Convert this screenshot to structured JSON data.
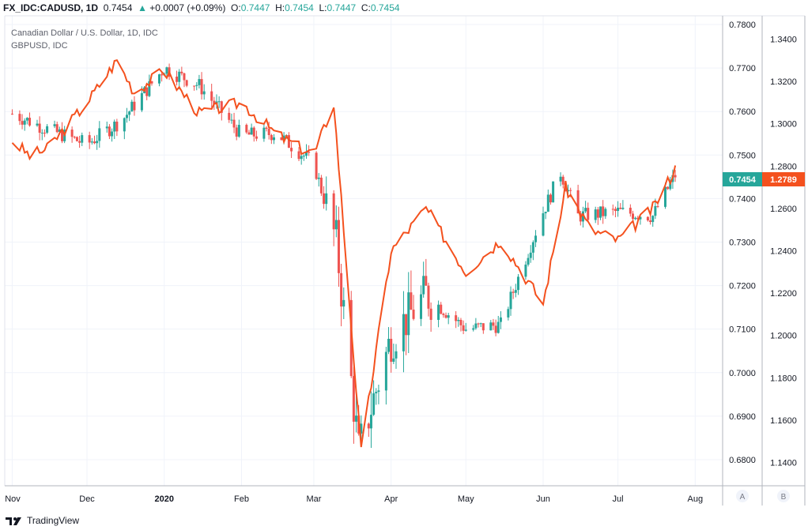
{
  "header": {
    "symbol": "FX_IDC:CADUSD, 1D",
    "last": "0.7454",
    "change": "+0.0007 (+0.09%)",
    "o_label": "O:",
    "o": "0.7447",
    "h_label": "H:",
    "h": "0.7454",
    "l_label": "L:",
    "l": "0.7447",
    "c_label": "C:",
    "c": "0.7454"
  },
  "legend": {
    "main": "Canadian Dollar / U.S. Dollar, 1D, IDC",
    "compare": "GBPUSD, IDC"
  },
  "axis_buttons": {
    "a": "A",
    "b": "B"
  },
  "footer": {
    "brand": "TradingView"
  },
  "colors": {
    "up": "#26a69a",
    "down": "#ef5350",
    "compare": "#f4511e",
    "grid": "#f0f3fa"
  },
  "chart_data": {
    "type": "line",
    "title": "Canadian Dollar / U.S. Dollar, 1D, IDC",
    "x_ticks": [
      "Nov",
      "Dec",
      "2020",
      "Feb",
      "Mar",
      "Apr",
      "May",
      "Jun",
      "Jul",
      "Aug"
    ],
    "y_left": {
      "ticks": [
        "0.7800",
        "0.7700",
        "0.7600",
        "0.7500",
        "0.7400",
        "0.7300",
        "0.7200",
        "0.7100",
        "0.7000",
        "0.6900",
        "0.6800"
      ],
      "range": [
        0.674,
        0.782
      ]
    },
    "y_right": {
      "ticks": [
        "1.3400",
        "1.3200",
        "1.3000",
        "1.2800",
        "1.2600",
        "1.2400",
        "1.2200",
        "1.2000",
        "1.1800",
        "1.1600",
        "1.1400"
      ],
      "range": [
        1.129,
        1.351
      ]
    },
    "last_left": "0.7454",
    "last_right": "1.2789",
    "series": [
      {
        "name": "CADUSD",
        "x": [
          "2019-11-01",
          "2019-11-15",
          "2019-12-01",
          "2019-12-15",
          "2020-01-01",
          "2020-01-15",
          "2020-02-01",
          "2020-02-15",
          "2020-03-01",
          "2020-03-10",
          "2020-03-19",
          "2020-04-01",
          "2020-04-15",
          "2020-05-01",
          "2020-05-15",
          "2020-06-01",
          "2020-06-08",
          "2020-06-15",
          "2020-07-01",
          "2020-07-15",
          "2020-07-24"
        ],
        "y": [
          0.7595,
          0.756,
          0.7525,
          0.758,
          0.77,
          0.766,
          0.7545,
          0.755,
          0.748,
          0.73,
          0.682,
          0.708,
          0.718,
          0.71,
          0.711,
          0.737,
          0.746,
          0.736,
          0.737,
          0.736,
          0.7454
        ]
      },
      {
        "name": "GBPUSD",
        "x": [
          "2019-11-01",
          "2019-11-08",
          "2019-11-15",
          "2019-12-01",
          "2019-12-13",
          "2019-12-20",
          "2020-01-01",
          "2020-01-15",
          "2020-02-01",
          "2020-02-15",
          "2020-03-01",
          "2020-03-09",
          "2020-03-20",
          "2020-04-01",
          "2020-04-15",
          "2020-05-01",
          "2020-05-15",
          "2020-06-01",
          "2020-06-10",
          "2020-06-20",
          "2020-07-01",
          "2020-07-15",
          "2020-07-24"
        ],
        "y": [
          1.292,
          1.285,
          1.288,
          1.31,
          1.33,
          1.315,
          1.325,
          1.305,
          1.31,
          1.295,
          1.285,
          1.31,
          1.145,
          1.24,
          1.26,
          1.23,
          1.245,
          1.215,
          1.27,
          1.25,
          1.245,
          1.26,
          1.2789
        ]
      }
    ]
  }
}
